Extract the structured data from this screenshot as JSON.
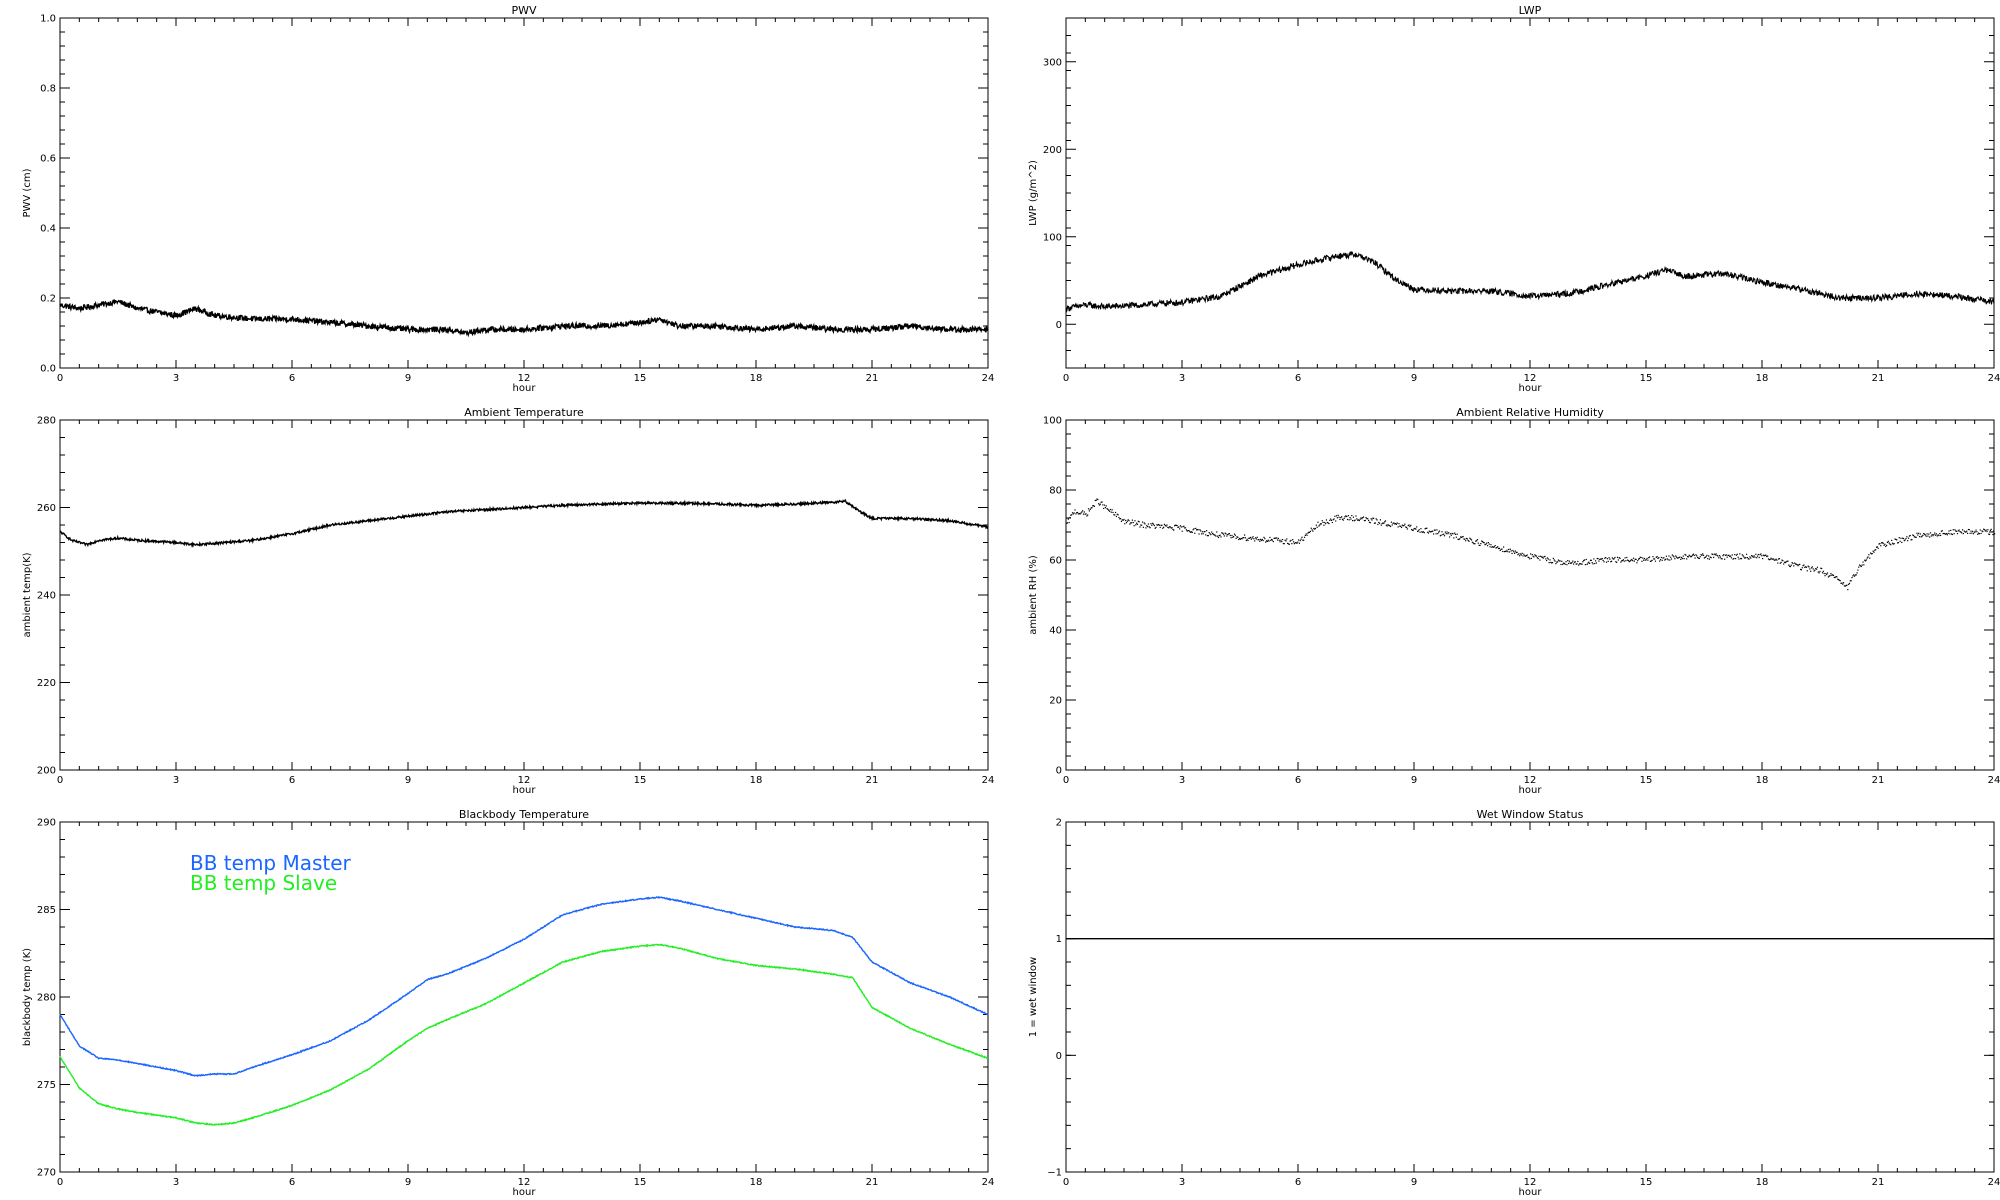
{
  "chart_data": [
    {
      "type": "line",
      "title": "PWV",
      "xlabel": "hour",
      "ylabel": "PWV (cm)",
      "xlim": [
        0,
        24
      ],
      "ylim": [
        0.0,
        1.0
      ],
      "xticks": [
        0,
        3,
        6,
        9,
        12,
        15,
        18,
        21,
        24
      ],
      "yticks": [
        0.0,
        0.2,
        0.4,
        0.6,
        0.8,
        1.0
      ],
      "ytick_labels": [
        "0.0",
        "0.2",
        "0.4",
        "0.6",
        "0.8",
        "1.0"
      ],
      "noise": 0.008,
      "series": [
        {
          "color": "#000000",
          "x": [
            0,
            0.5,
            1,
            1.5,
            2,
            3,
            3.5,
            4,
            5,
            6,
            7,
            8,
            9,
            10,
            10.5,
            11,
            12,
            13,
            14,
            15,
            15.5,
            16,
            17,
            18,
            19,
            20,
            21,
            22,
            23,
            24
          ],
          "y": [
            0.18,
            0.17,
            0.18,
            0.19,
            0.17,
            0.15,
            0.17,
            0.15,
            0.14,
            0.14,
            0.13,
            0.12,
            0.11,
            0.11,
            0.1,
            0.11,
            0.11,
            0.12,
            0.12,
            0.13,
            0.14,
            0.12,
            0.12,
            0.11,
            0.12,
            0.11,
            0.11,
            0.12,
            0.11,
            0.11
          ]
        }
      ]
    },
    {
      "type": "line",
      "title": "LWP",
      "xlabel": "hour",
      "ylabel": "LWP (g/m^2)",
      "xlim": [
        0,
        24
      ],
      "ylim": [
        -50,
        350
      ],
      "xticks": [
        0,
        3,
        6,
        9,
        12,
        15,
        18,
        21,
        24
      ],
      "yticks": [
        0,
        100,
        200,
        300
      ],
      "ytick_labels": [
        "0",
        "100",
        "200",
        "300"
      ],
      "noise": 3.5,
      "series": [
        {
          "color": "#000000",
          "x": [
            0,
            0.5,
            1,
            2,
            2.5,
            3,
            4,
            5,
            6,
            7,
            7.5,
            8,
            8.5,
            9,
            10,
            11,
            12,
            13,
            14,
            15,
            15.5,
            16,
            17,
            18,
            19,
            20,
            21,
            22,
            23,
            24
          ],
          "y": [
            18,
            22,
            20,
            22,
            24,
            25,
            32,
            55,
            68,
            78,
            80,
            70,
            52,
            40,
            38,
            38,
            32,
            35,
            45,
            55,
            62,
            55,
            58,
            48,
            40,
            30,
            30,
            35,
            32,
            25
          ]
        }
      ]
    },
    {
      "type": "line",
      "title": "Ambient Temperature",
      "xlabel": "hour",
      "ylabel": "ambient temp(K)",
      "xlim": [
        0,
        24
      ],
      "ylim": [
        200,
        280
      ],
      "xticks": [
        0,
        3,
        6,
        9,
        12,
        15,
        18,
        21,
        24
      ],
      "yticks": [
        200,
        220,
        240,
        260,
        280
      ],
      "ytick_labels": [
        "200",
        "220",
        "240",
        "260",
        "280"
      ],
      "noise": 0.25,
      "series": [
        {
          "color": "#000000",
          "x": [
            0,
            0.3,
            0.7,
            1,
            1.5,
            2,
            3,
            3.5,
            4,
            5,
            6,
            7,
            8,
            9,
            10,
            11,
            12,
            13,
            14,
            15,
            16,
            17,
            18,
            19,
            20,
            20.3,
            20.7,
            21,
            22,
            23,
            24
          ],
          "y": [
            254.5,
            252.5,
            251.5,
            252.5,
            253,
            252.5,
            252,
            251.5,
            251.8,
            252.5,
            254,
            256,
            257,
            258,
            259,
            259.5,
            260,
            260.5,
            260.8,
            261,
            261,
            260.8,
            260.5,
            260.8,
            261.2,
            261.5,
            259,
            257.5,
            257.5,
            257,
            255.5
          ]
        }
      ]
    },
    {
      "type": "scatter",
      "title": "Ambient Relative Humidity",
      "xlabel": "hour",
      "ylabel": "ambient RH (%)",
      "xlim": [
        0,
        24
      ],
      "ylim": [
        0,
        100
      ],
      "xticks": [
        0,
        3,
        6,
        9,
        12,
        15,
        18,
        21,
        24
      ],
      "yticks": [
        0,
        20,
        40,
        60,
        80,
        100
      ],
      "ytick_labels": [
        "0",
        "20",
        "40",
        "60",
        "80",
        "100"
      ],
      "noise": 0.8,
      "series": [
        {
          "color": "#000000",
          "x": [
            0,
            0.2,
            0.5,
            0.8,
            1,
            1.5,
            2,
            3,
            4,
            5,
            6,
            6.5,
            7,
            7.5,
            8,
            9,
            10,
            11,
            12,
            13,
            14,
            15,
            16,
            17,
            18,
            19,
            19.5,
            20,
            20.2,
            20.5,
            21,
            22,
            23,
            24
          ],
          "y": [
            70,
            74,
            73,
            77,
            75,
            71,
            70,
            69,
            67,
            66,
            65,
            70,
            72,
            72,
            71,
            69,
            67,
            64,
            61,
            59,
            60,
            60,
            61,
            61,
            61,
            58,
            57,
            54,
            52,
            58,
            64,
            67,
            68,
            68
          ]
        }
      ]
    },
    {
      "type": "line",
      "title": "Blackbody Temperature",
      "xlabel": "hour",
      "ylabel": "blackbody temp (K)",
      "xlim": [
        0,
        24
      ],
      "ylim": [
        270,
        290
      ],
      "xticks": [
        0,
        3,
        6,
        9,
        12,
        15,
        18,
        21,
        24
      ],
      "yticks": [
        270,
        275,
        280,
        285,
        290
      ],
      "ytick_labels": [
        "270",
        "275",
        "280",
        "285",
        "290"
      ],
      "noise": 0.03,
      "legend": "top-left",
      "series": [
        {
          "name": "BB temp Master",
          "color": "#1a66ff",
          "x": [
            0,
            0.5,
            1,
            1.5,
            2,
            3,
            3.5,
            4,
            4.5,
            5,
            6,
            7,
            8,
            9,
            9.5,
            10,
            11,
            12,
            13,
            14,
            15,
            15.5,
            16,
            17,
            18,
            19,
            20,
            20.5,
            21,
            22,
            23,
            24
          ],
          "y": [
            279.0,
            277.2,
            276.5,
            276.4,
            276.2,
            275.8,
            275.5,
            275.6,
            275.6,
            276.0,
            276.7,
            277.5,
            278.7,
            280.2,
            281.0,
            281.3,
            282.2,
            283.3,
            284.7,
            285.3,
            285.6,
            285.7,
            285.5,
            285.0,
            284.5,
            284.0,
            283.8,
            283.4,
            282.0,
            280.8,
            280.0,
            279.0
          ]
        },
        {
          "name": "BB temp Slave",
          "color": "#22ee22",
          "x": [
            0,
            0.5,
            1,
            1.5,
            2,
            3,
            3.5,
            4,
            4.5,
            5,
            6,
            7,
            8,
            9,
            9.5,
            10,
            11,
            12,
            13,
            14,
            15,
            15.5,
            16,
            17,
            18,
            19,
            20,
            20.5,
            21,
            22,
            23,
            24
          ],
          "y": [
            276.6,
            274.8,
            273.9,
            273.6,
            273.4,
            273.1,
            272.8,
            272.7,
            272.8,
            273.1,
            273.8,
            274.7,
            275.9,
            277.5,
            278.2,
            278.7,
            279.6,
            280.8,
            282.0,
            282.6,
            282.9,
            283.0,
            282.8,
            282.2,
            281.8,
            281.6,
            281.3,
            281.1,
            279.4,
            278.2,
            277.3,
            276.5
          ]
        }
      ]
    },
    {
      "type": "line",
      "title": "Wet Window Status",
      "xlabel": "hour",
      "ylabel": "1 = wet window",
      "xlim": [
        0,
        24
      ],
      "ylim": [
        -1,
        2
      ],
      "xticks": [
        0,
        3,
        6,
        9,
        12,
        15,
        18,
        21,
        24
      ],
      "yticks": [
        -1,
        0,
        1,
        2
      ],
      "ytick_labels": [
        "−1",
        "0",
        "1",
        "2"
      ],
      "noise": 0,
      "series": [
        {
          "color": "#000000",
          "x": [
            0,
            24
          ],
          "y": [
            1,
            1
          ]
        }
      ]
    }
  ]
}
